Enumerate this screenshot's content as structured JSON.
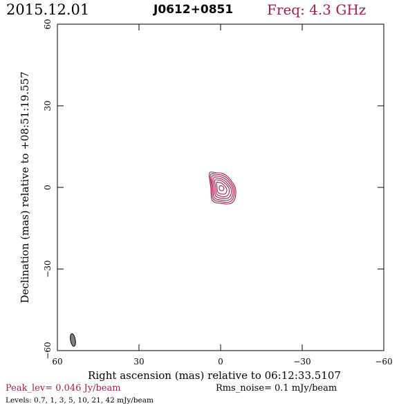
{
  "header": {
    "date": "2015.12.01",
    "source": "J0612+0851",
    "freq": "Freq: 4.3 GHz"
  },
  "footer": {
    "peak": "Peak_lev=  0.046 Jy/beam",
    "rms": "Rms_noise=  0.1 mJy/beam",
    "levels": "Levels: 0.7,    1,    3,    5,   10,   21,   42  mJy/beam"
  },
  "colors": {
    "accent": "#a0204a",
    "contour": "#a0204a",
    "beam": "#808080",
    "axis": "#000000"
  },
  "chart_data": {
    "type": "contour",
    "xlabel": "Right ascension (mas) relative to 06:12:33.5107",
    "ylabel": "Declination (mas) relative to +08:51:19.557",
    "xlim": [
      60,
      -60
    ],
    "ylim": [
      -60,
      60
    ],
    "xticks": [
      60,
      30,
      0,
      -30,
      -60
    ],
    "yticks": [
      60,
      30,
      0,
      -30,
      -60
    ],
    "xtick_labels": [
      "60",
      "30",
      "0",
      "−30",
      "−60"
    ],
    "ytick_labels": [
      "60",
      "30",
      "0",
      "−30",
      "−60"
    ],
    "peak_jy_per_beam": 0.046,
    "rms_mjy_per_beam": 0.1,
    "levels_mjy_per_beam": [
      0.7,
      1,
      3,
      5,
      10,
      21,
      42
    ],
    "source_center_mas": [
      0,
      0
    ],
    "contours": [
      {
        "level": 0.7,
        "points": [
          [
            3.8,
            5.6
          ],
          [
            1.6,
            5.4
          ],
          [
            -0.5,
            5.2
          ],
          [
            -2.6,
            4.0
          ],
          [
            -4.1,
            2.2
          ],
          [
            -5.3,
            0.2
          ],
          [
            -5.6,
            -1.8
          ],
          [
            -5.3,
            -4.0
          ],
          [
            -4.3,
            -5.6
          ],
          [
            -2.5,
            -6.1
          ],
          [
            -0.4,
            -5.9
          ],
          [
            1.8,
            -5.6
          ],
          [
            3.2,
            -4.6
          ],
          [
            3.5,
            -2.4
          ],
          [
            3.6,
            -0.2
          ],
          [
            3.9,
            2.2
          ],
          [
            4.2,
            4.2
          ]
        ]
      },
      {
        "level": 1,
        "points": [
          [
            3.4,
            5.0
          ],
          [
            1.4,
            4.8
          ],
          [
            -0.4,
            4.5
          ],
          [
            -2.3,
            3.5
          ],
          [
            -3.7,
            1.9
          ],
          [
            -4.8,
            0.1
          ],
          [
            -5.1,
            -1.7
          ],
          [
            -4.8,
            -3.6
          ],
          [
            -3.9,
            -5.0
          ],
          [
            -2.3,
            -5.5
          ],
          [
            -0.4,
            -5.3
          ],
          [
            1.6,
            -5.0
          ],
          [
            2.8,
            -4.1
          ],
          [
            3.1,
            -2.2
          ],
          [
            3.2,
            -0.2
          ],
          [
            3.5,
            1.9
          ],
          [
            3.8,
            3.8
          ]
        ]
      },
      {
        "level": 3,
        "points": [
          [
            3.0,
            4.3
          ],
          [
            1.2,
            4.1
          ],
          [
            -0.4,
            3.8
          ],
          [
            -2.0,
            2.9
          ],
          [
            -3.3,
            1.5
          ],
          [
            -4.3,
            0.0
          ],
          [
            -4.6,
            -1.6
          ],
          [
            -4.3,
            -3.2
          ],
          [
            -3.5,
            -4.4
          ],
          [
            -2.1,
            -4.8
          ],
          [
            -0.4,
            -4.7
          ],
          [
            1.3,
            -4.4
          ],
          [
            2.4,
            -3.6
          ],
          [
            2.7,
            -2.0
          ],
          [
            2.8,
            -0.2
          ],
          [
            3.1,
            1.6
          ],
          [
            3.3,
            3.2
          ]
        ]
      },
      {
        "level": 5,
        "points": [
          [
            2.5,
            3.6
          ],
          [
            1.0,
            3.4
          ],
          [
            -0.3,
            3.1
          ],
          [
            -1.7,
            2.3
          ],
          [
            -2.8,
            1.1
          ],
          [
            -3.7,
            -0.1
          ],
          [
            -4.0,
            -1.5
          ],
          [
            -3.7,
            -2.8
          ],
          [
            -3.0,
            -3.8
          ],
          [
            -1.8,
            -4.1
          ],
          [
            -0.4,
            -4.0
          ],
          [
            1.0,
            -3.7
          ],
          [
            1.9,
            -3.0
          ],
          [
            2.2,
            -1.7
          ],
          [
            2.3,
            -0.2
          ],
          [
            2.6,
            1.3
          ],
          [
            2.8,
            2.7
          ]
        ]
      },
      {
        "level": 10,
        "points": [
          [
            2.0,
            2.8
          ],
          [
            0.8,
            2.7
          ],
          [
            -0.3,
            2.4
          ],
          [
            -1.4,
            1.7
          ],
          [
            -2.3,
            0.8
          ],
          [
            -3.0,
            -0.2
          ],
          [
            -3.2,
            -1.3
          ],
          [
            -3.0,
            -2.3
          ],
          [
            -2.4,
            -3.1
          ],
          [
            -1.4,
            -3.4
          ],
          [
            -0.3,
            -3.3
          ],
          [
            0.7,
            -3.0
          ],
          [
            1.5,
            -2.4
          ],
          [
            1.7,
            -1.4
          ],
          [
            1.8,
            -0.2
          ],
          [
            2.0,
            1.0
          ],
          [
            2.2,
            2.1
          ]
        ]
      },
      {
        "level": 21,
        "points": [
          [
            1.4,
            1.9
          ],
          [
            0.5,
            1.8
          ],
          [
            -0.3,
            1.6
          ],
          [
            -1.0,
            1.1
          ],
          [
            -1.6,
            0.4
          ],
          [
            -2.1,
            -0.3
          ],
          [
            -2.3,
            -1.0
          ],
          [
            -2.1,
            -1.8
          ],
          [
            -1.7,
            -2.3
          ],
          [
            -1.0,
            -2.5
          ],
          [
            -0.2,
            -2.4
          ],
          [
            0.5,
            -2.2
          ],
          [
            1.0,
            -1.8
          ],
          [
            1.2,
            -1.0
          ],
          [
            1.3,
            -0.2
          ],
          [
            1.4,
            0.7
          ],
          [
            1.5,
            1.4
          ]
        ]
      },
      {
        "level": 42,
        "points": [
          [
            0.4,
            0.4
          ],
          [
            -0.3,
            0.6
          ],
          [
            -1.0,
            0.2
          ],
          [
            -1.2,
            -0.5
          ],
          [
            -0.9,
            -1.1
          ],
          [
            -0.2,
            -1.2
          ],
          [
            0.4,
            -0.8
          ],
          [
            0.5,
            -0.2
          ]
        ]
      }
    ],
    "beam": {
      "center_mas": [
        54.3,
        -56.1
      ],
      "major_mas": 4.7,
      "minor_mas": 1.8,
      "pa_deg": 10
    }
  }
}
